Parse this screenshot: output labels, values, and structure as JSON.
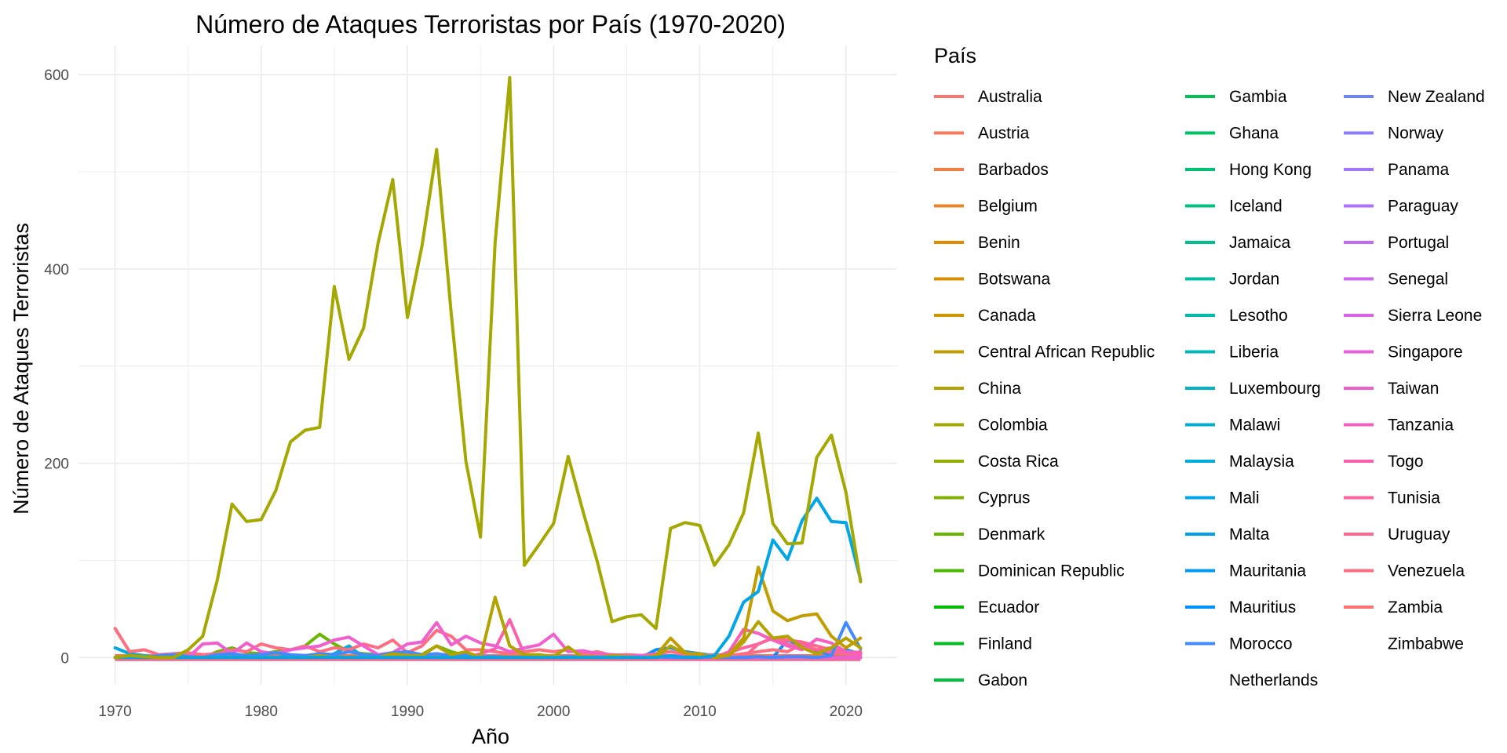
{
  "chart_data": {
    "type": "line",
    "title": "Número de Ataques Terroristas por País (1970-2020)",
    "xlabel": "Año",
    "ylabel": "Número de Ataques Terroristas",
    "xlim": [
      1967.5,
      2023.5
    ],
    "ylim": [
      -28,
      630
    ],
    "x_ticks": [
      1970,
      1980,
      1990,
      2000,
      2010,
      2020
    ],
    "x_tick_labels": [
      "1970",
      "1980",
      "1990",
      "2000",
      "2010",
      "2020"
    ],
    "y_ticks": [
      0,
      200,
      400,
      600
    ],
    "y_tick_labels": [
      "0",
      "200",
      "400",
      "600"
    ],
    "grid": true,
    "legend": {
      "title": "País",
      "placement": "right",
      "columns": [
        [
          "Australia",
          "Austria",
          "Barbados",
          "Belgium",
          "Benin",
          "Botswana",
          "Canada",
          "Central African Republic",
          "China",
          "Colombia",
          "Costa Rica",
          "Cyprus",
          "Denmark",
          "Dominican Republic",
          "Ecuador",
          "Finland",
          "Gabon"
        ],
        [
          "Gambia",
          "Ghana",
          "Hong Kong",
          "Iceland",
          "Jamaica",
          "Jordan",
          "Lesotho",
          "Liberia",
          "Luxembourg",
          "Malawi",
          "Malaysia",
          "Mali",
          "Malta",
          "Mauritania",
          "Mauritius",
          "Morocco",
          "Netherlands"
        ],
        [
          "New Zealand",
          "Norway",
          "Panama",
          "Paraguay",
          "Portugal",
          "Senegal",
          "Sierra Leone",
          "Singapore",
          "Taiwan",
          "Tanzania",
          "Togo",
          "Tunisia",
          "Uruguay",
          "Venezuela",
          "Zambia",
          "Zimbabwe"
        ]
      ],
      "colors": [
        [
          "#F8766D",
          "#F47A5B",
          "#EF7F46",
          "#E98428",
          "#E28A00",
          "#D89000",
          "#CE9700",
          "#C19D00",
          "#B3A300",
          "#A4A800",
          "#93AD00",
          "#7FB200",
          "#68B700",
          "#49BA00",
          "#00BD00",
          "#00BF23",
          "#00C03F"
        ],
        [
          "#00C152",
          "#00C263",
          "#00C173",
          "#00C082",
          "#00BF91",
          "#00BD9F",
          "#00BAAC",
          "#00B7B9",
          "#00B3C6",
          "#00AFD2",
          "#00ABDE",
          "#00A6E8",
          "#00A0F1",
          "#009AF8",
          "#0093FF",
          "#428BFF"
        ],
        [
          "#6C84FF",
          "#887CFF",
          "#9E75FF",
          "#B06FFF",
          "#C16AF8",
          "#D066F0",
          "#DC62E6",
          "#E760DA",
          "#F05FCD",
          "#F75FBF",
          "#FB60AF",
          "#FE649F",
          "#FF688F",
          "#FE6D80",
          "#FC7271"
        ]
      ]
    },
    "x": [
      1970,
      1971,
      1972,
      1973,
      1974,
      1975,
      1976,
      1977,
      1978,
      1979,
      1980,
      1981,
      1982,
      1983,
      1984,
      1985,
      1986,
      1987,
      1988,
      1989,
      1990,
      1991,
      1992,
      1993,
      1994,
      1995,
      1996,
      1997,
      1998,
      1999,
      2000,
      2001,
      2002,
      2003,
      2004,
      2005,
      2006,
      2007,
      2008,
      2009,
      2010,
      2011,
      2012,
      2013,
      2014,
      2015,
      2016,
      2017,
      2018,
      2019,
      2020,
      2021
    ],
    "series": [
      {
        "name": "Colombia",
        "color": "#A4A800",
        "values": [
          0,
          2,
          1,
          0,
          0,
          8,
          22,
          80,
          158,
          140,
          142,
          172,
          222,
          234,
          237,
          382,
          307,
          339,
          427,
          492,
          350,
          424,
          523,
          354,
          202,
          124,
          427,
          597,
          95,
          116,
          138,
          207,
          151,
          98,
          37,
          42,
          44,
          30,
          133,
          139,
          136,
          95,
          116,
          149,
          231,
          138,
          117,
          118,
          206,
          229,
          170,
          78
        ]
      },
      {
        "name": "Mali",
        "color": "#00A6E8",
        "values": [
          0,
          0,
          0,
          0,
          0,
          0,
          0,
          0,
          0,
          0,
          0,
          0,
          0,
          0,
          0,
          0,
          0,
          0,
          0,
          0,
          0,
          0,
          0,
          0,
          0,
          0,
          0,
          0,
          0,
          0,
          0,
          0,
          0,
          0,
          0,
          0,
          0,
          0,
          2,
          0,
          0,
          2,
          22,
          57,
          68,
          121,
          101,
          141,
          164,
          140,
          139,
          80
        ]
      },
      {
        "name": "Central African Republic",
        "color": "#C19D00",
        "values": [
          0,
          0,
          0,
          0,
          0,
          0,
          0,
          0,
          0,
          0,
          0,
          0,
          0,
          0,
          0,
          0,
          0,
          0,
          0,
          0,
          0,
          0,
          0,
          0,
          0,
          0,
          0,
          0,
          0,
          0,
          0,
          0,
          0,
          0,
          0,
          0,
          0,
          2,
          20,
          5,
          3,
          1,
          3,
          20,
          93,
          48,
          38,
          43,
          45,
          22,
          10,
          20
        ]
      },
      {
        "name": "China",
        "color": "#B3A300",
        "values": [
          0,
          0,
          0,
          0,
          0,
          0,
          0,
          0,
          0,
          0,
          0,
          0,
          0,
          0,
          2,
          0,
          0,
          0,
          0,
          4,
          2,
          2,
          12,
          3,
          6,
          0,
          62,
          12,
          3,
          3,
          1,
          11,
          0,
          0,
          2,
          1,
          0,
          0,
          12,
          4,
          4,
          0,
          2,
          16,
          37,
          20,
          22,
          10,
          4,
          10,
          20,
          10
        ]
      },
      {
        "name": "Netherlands",
        "color": "#428BFF",
        "values": [
          0,
          1,
          0,
          2,
          3,
          1,
          0,
          3,
          4,
          2,
          3,
          5,
          3,
          2,
          4,
          3,
          6,
          3,
          2,
          5,
          6,
          3,
          4,
          2,
          3,
          1,
          1,
          0,
          0,
          1,
          0,
          1,
          0,
          0,
          1,
          0,
          0,
          1,
          0,
          0,
          1,
          0,
          0,
          0,
          1,
          0,
          1,
          1,
          0,
          2,
          36,
          9
        ]
      },
      {
        "name": "Tanzania",
        "color": "#F75FBF",
        "values": [
          0,
          0,
          0,
          0,
          0,
          0,
          0,
          0,
          0,
          0,
          0,
          0,
          0,
          0,
          0,
          0,
          0,
          0,
          0,
          0,
          0,
          0,
          0,
          0,
          0,
          0,
          0,
          0,
          0,
          0,
          0,
          0,
          0,
          0,
          0,
          0,
          0,
          0,
          0,
          0,
          0,
          0,
          6,
          29,
          25,
          18,
          12,
          8,
          19,
          15,
          6,
          4
        ]
      },
      {
        "name": "Taiwan",
        "color": "#F05FCD",
        "values": [
          0,
          0,
          0,
          0,
          0,
          0,
          14,
          15,
          4,
          15,
          6,
          4,
          8,
          10,
          12,
          18,
          21,
          12,
          3,
          5,
          14,
          16,
          36,
          13,
          22,
          15,
          12,
          6,
          10,
          13,
          24,
          6,
          7,
          4,
          3,
          2,
          2,
          4,
          1,
          2,
          1,
          0,
          0,
          0,
          0,
          1,
          0,
          1,
          0,
          0,
          0,
          0
        ]
      },
      {
        "name": "Togo",
        "color": "#FB60AF",
        "values": [
          0,
          0,
          0,
          0,
          0,
          0,
          0,
          0,
          0,
          0,
          0,
          0,
          0,
          0,
          0,
          0,
          0,
          0,
          0,
          0,
          0,
          0,
          0,
          0,
          0,
          4,
          9,
          39,
          3,
          0,
          0,
          0,
          0,
          0,
          0,
          0,
          0,
          0,
          0,
          0,
          0,
          0,
          0,
          0,
          0,
          0,
          0,
          0,
          0,
          0,
          0,
          0
        ]
      },
      {
        "name": "Tunisia",
        "color": "#FE649F",
        "values": [
          0,
          0,
          0,
          0,
          0,
          0,
          0,
          0,
          0,
          0,
          0,
          0,
          0,
          0,
          0,
          0,
          0,
          0,
          0,
          0,
          0,
          0,
          0,
          0,
          0,
          0,
          0,
          0,
          0,
          0,
          0,
          0,
          0,
          0,
          0,
          0,
          0,
          0,
          0,
          0,
          0,
          0,
          5,
          10,
          14,
          20,
          14,
          10,
          8,
          5,
          4,
          3
        ]
      },
      {
        "name": "Uruguay",
        "color": "#FF688F",
        "values": [
          0,
          0,
          0,
          0,
          0,
          0,
          0,
          0,
          0,
          0,
          0,
          0,
          0,
          0,
          0,
          0,
          0,
          0,
          0,
          0,
          0,
          0,
          0,
          0,
          0,
          0,
          0,
          0,
          0,
          0,
          0,
          0,
          0,
          0,
          0,
          0,
          0,
          0,
          0,
          0,
          0,
          0,
          0,
          0,
          14,
          20,
          18,
          16,
          12,
          8,
          6,
          5
        ]
      },
      {
        "name": "Venezuela",
        "color": "#FE6D80",
        "values": [
          30,
          6,
          8,
          3,
          4,
          5,
          3,
          4,
          8,
          6,
          14,
          10,
          8,
          12,
          6,
          10,
          8,
          14,
          10,
          18,
          5,
          12,
          28,
          22,
          8,
          8,
          6,
          4,
          6,
          8,
          6,
          8,
          4,
          6,
          2,
          3,
          2,
          4,
          6,
          4,
          2,
          3,
          2,
          4,
          6,
          8,
          6,
          14,
          8,
          10,
          4,
          6
        ]
      },
      {
        "name": "Morocco",
        "color": "#0093FF",
        "values": [
          0,
          0,
          0,
          0,
          0,
          0,
          0,
          0,
          0,
          0,
          0,
          0,
          0,
          0,
          0,
          0,
          0,
          0,
          0,
          0,
          0,
          0,
          0,
          0,
          0,
          0,
          0,
          0,
          0,
          0,
          0,
          0,
          0,
          0,
          0,
          0,
          0,
          8,
          10,
          6,
          4,
          2,
          0,
          0,
          0,
          0,
          18,
          12,
          6,
          4,
          8,
          4
        ]
      },
      {
        "name": "Malaysia",
        "color": "#00ABDE",
        "values": [
          10,
          4,
          2,
          0,
          3,
          1,
          0,
          2,
          4,
          0,
          0,
          0,
          2,
          1,
          0,
          4,
          12,
          0,
          0,
          0,
          0,
          0,
          0,
          0,
          0,
          0,
          0,
          0,
          0,
          0,
          0,
          0,
          0,
          0,
          0,
          0,
          0,
          0,
          0,
          0,
          0,
          0,
          0,
          0,
          0,
          0,
          0,
          0,
          0,
          0,
          0,
          0
        ]
      },
      {
        "name": "Denmark",
        "color": "#68B700",
        "values": [
          0,
          0,
          0,
          0,
          0,
          0,
          0,
          6,
          10,
          5,
          4,
          6,
          8,
          12,
          24,
          14,
          6,
          4,
          3,
          2,
          4,
          3,
          12,
          6,
          2,
          1,
          0,
          0,
          0,
          0,
          0,
          0,
          0,
          0,
          0,
          0,
          0,
          0,
          0,
          0,
          0,
          0,
          0,
          0,
          0,
          0,
          0,
          0,
          0,
          0,
          0,
          0
        ]
      },
      {
        "name": "Sierra Leone",
        "color": "#DC62E6",
        "values": [
          0,
          0,
          0,
          0,
          0,
          0,
          0,
          0,
          0,
          0,
          0,
          0,
          0,
          0,
          0,
          0,
          0,
          0,
          0,
          0,
          0,
          0,
          0,
          0,
          0,
          0,
          0,
          0,
          0,
          0,
          0,
          0,
          0,
          0,
          0,
          0,
          0,
          0,
          0,
          0,
          0,
          0,
          0,
          0,
          0,
          0,
          0,
          0,
          0,
          0,
          0,
          0
        ]
      },
      {
        "name": "Zimbabwe",
        "color": "#FC7271",
        "values": [
          0,
          0,
          0,
          0,
          0,
          0,
          0,
          0,
          0,
          0,
          0,
          0,
          0,
          0,
          0,
          0,
          0,
          0,
          0,
          0,
          0,
          0,
          0,
          0,
          0,
          0,
          0,
          0,
          0,
          0,
          0,
          0,
          0,
          0,
          0,
          0,
          0,
          0,
          0,
          0,
          0,
          0,
          0,
          0,
          0,
          0,
          0,
          0,
          0,
          0,
          0,
          0
        ]
      }
    ]
  }
}
